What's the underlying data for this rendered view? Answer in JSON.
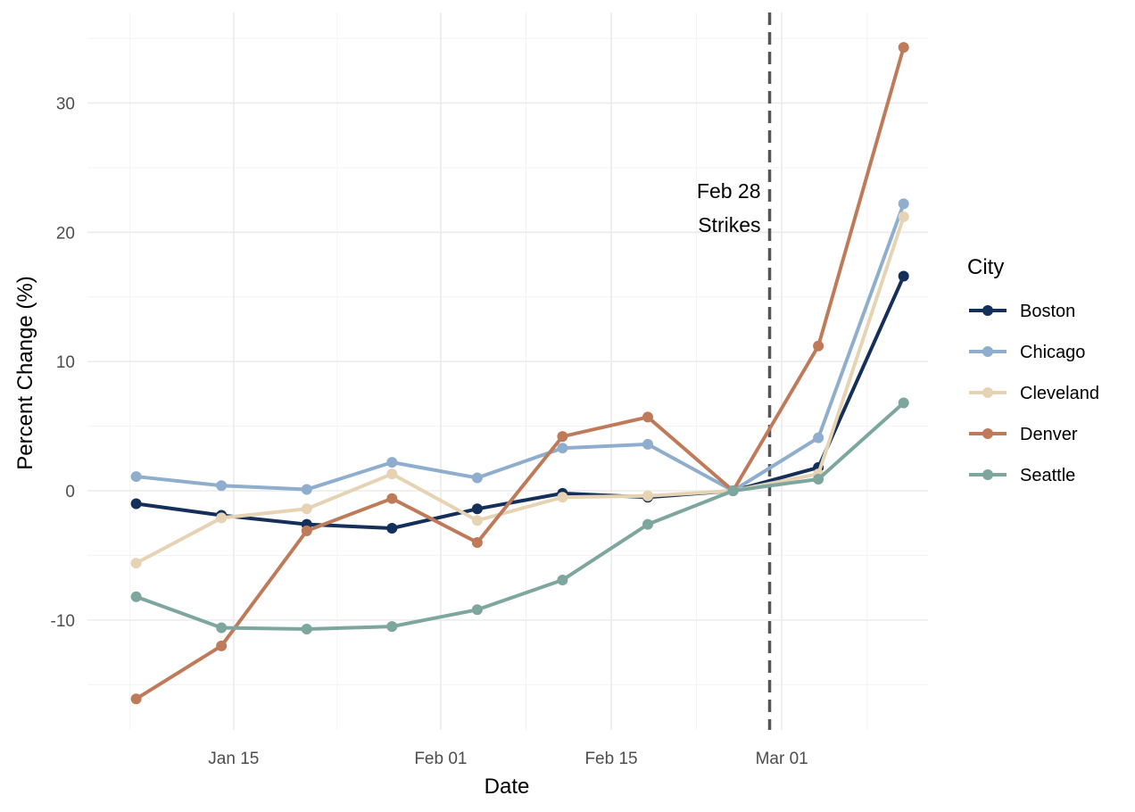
{
  "chart_data": {
    "type": "line",
    "xlabel": "Date",
    "ylabel": "Percent Change (%)",
    "x": [
      "2025-01-07",
      "2025-01-14",
      "2025-01-21",
      "2025-01-28",
      "2025-02-04",
      "2025-02-11",
      "2025-02-18",
      "2025-02-25",
      "2025-03-04",
      "2025-03-11"
    ],
    "x_ticks": [
      {
        "date": "2025-01-15",
        "label": "Jan 15"
      },
      {
        "date": "2025-02-01",
        "label": "Feb 01"
      },
      {
        "date": "2025-02-15",
        "label": "Feb 15"
      },
      {
        "date": "2025-03-01",
        "label": "Mar 01"
      }
    ],
    "y_ticks": [
      {
        "value": -10,
        "label": "-10"
      },
      {
        "value": 0,
        "label": "0"
      },
      {
        "value": 10,
        "label": "10"
      },
      {
        "value": 20,
        "label": "20"
      },
      {
        "value": 30,
        "label": "30"
      }
    ],
    "ylim": [
      -18.5,
      37
    ],
    "xlim": [
      "2025-01-03",
      "2025-03-13"
    ],
    "grid": true,
    "legend": {
      "title": "City",
      "placement": "right"
    },
    "annotation": {
      "line_date": "2025-02-28",
      "line_style": "dashed",
      "line_color": "#555555",
      "text_lines": [
        "Feb 28",
        "Strikes"
      ]
    },
    "series": [
      {
        "name": "Boston",
        "color": "#14305a",
        "values": [
          -1.0,
          -1.9,
          -2.6,
          -2.9,
          -1.4,
          -0.2,
          -0.5,
          0.0,
          1.8,
          16.6
        ]
      },
      {
        "name": "Chicago",
        "color": "#8fadcc",
        "values": [
          1.1,
          0.4,
          0.1,
          2.2,
          1.0,
          3.3,
          3.6,
          0.0,
          4.1,
          22.2
        ]
      },
      {
        "name": "Cleveland",
        "color": "#e6d3b3",
        "values": [
          -5.6,
          -2.1,
          -1.4,
          1.3,
          -2.3,
          -0.5,
          -0.4,
          0.0,
          1.3,
          21.2
        ]
      },
      {
        "name": "Denver",
        "color": "#bf7a59",
        "values": [
          -16.1,
          -12.0,
          -3.1,
          -0.6,
          -4.0,
          4.2,
          5.7,
          0.0,
          11.2,
          34.3
        ]
      },
      {
        "name": "Seattle",
        "color": "#7da69e",
        "values": [
          -8.2,
          -10.6,
          -10.7,
          -10.5,
          -9.2,
          -6.9,
          -2.6,
          0.0,
          0.9,
          6.8
        ]
      }
    ]
  }
}
